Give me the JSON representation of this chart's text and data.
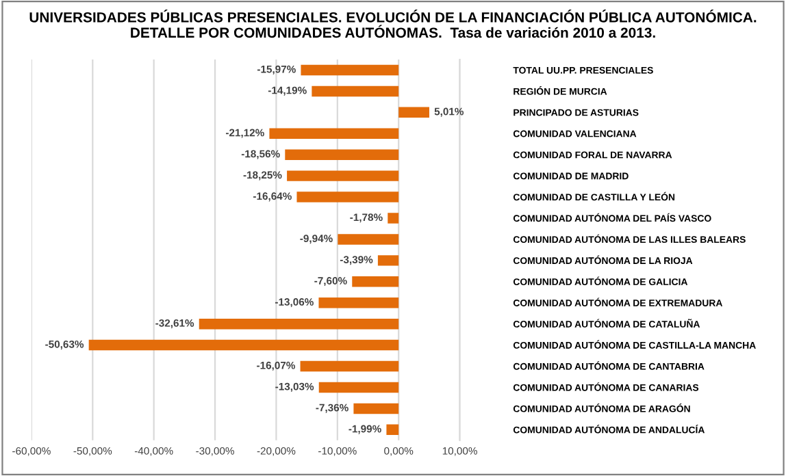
{
  "chart_data": {
    "type": "bar",
    "orientation": "horizontal",
    "title": "UNIVERSIDADES PÚBLICAS PRESENCIALES. EVOLUCIÓN DE LA FINANCIACIÓN PÚBLICA AUTONÓMICA. DETALLE POR COMUNIDADES AUTÓNOMAS.  Tasa de variación 2010 a 2013.",
    "categories": [
      "TOTAL UU.PP. PRESENCIALES",
      "REGIÓN DE MURCIA",
      "PRINCIPADO DE ASTURIAS",
      "COMUNIDAD VALENCIANA",
      "COMUNIDAD FORAL DE NAVARRA",
      "COMUNIDAD DE MADRID",
      "COMUNIDAD DE CASTILLA Y LEÓN",
      "COMUNIDAD AUTÓNOMA DEL PAÍS VASCO",
      "COMUNIDAD AUTÓNOMA DE LAS ILLES BALEARS",
      "COMUNIDAD AUTÓNOMA DE LA RIOJA",
      "COMUNIDAD AUTÓNOMA DE GALICIA",
      "COMUNIDAD AUTÓNOMA DE EXTREMADURA",
      "COMUNIDAD AUTÓNOMA DE CATALUÑA",
      "COMUNIDAD AUTÓNOMA DE CASTILLA-LA MANCHA",
      "COMUNIDAD AUTÓNOMA DE CANTABRIA",
      "COMUNIDAD AUTÓNOMA DE CANARIAS",
      "COMUNIDAD AUTÓNOMA DE ARAGÓN",
      "COMUNIDAD AUTÓNOMA DE ANDALUCÍA"
    ],
    "values": [
      -15.97,
      -14.19,
      5.01,
      -21.12,
      -18.56,
      -18.25,
      -16.64,
      -1.78,
      -9.94,
      -3.39,
      -7.6,
      -13.06,
      -32.61,
      -50.63,
      -16.07,
      -13.03,
      -7.36,
      -1.99
    ],
    "value_labels": [
      "-15,97%",
      "-14,19%",
      "5,01%",
      "-21,12%",
      "-18,56%",
      "-18,25%",
      "-16,64%",
      "-1,78%",
      "-9,94%",
      "-3,39%",
      "-7,60%",
      "-13,06%",
      "-32,61%",
      "-50,63%",
      "-16,07%",
      "-13,03%",
      "-7,36%",
      "-1,99%"
    ],
    "color": "#e36c0a",
    "xlim": [
      -60,
      10
    ],
    "xticks": [
      {
        "value": -60,
        "label": "-60,00%"
      },
      {
        "value": -50,
        "label": "-50,00%"
      },
      {
        "value": -40,
        "label": "-40,00%"
      },
      {
        "value": -30,
        "label": "-30,00%"
      },
      {
        "value": -20,
        "label": "-20,00%"
      },
      {
        "value": -10,
        "label": "-10,00%"
      },
      {
        "value": 0,
        "label": "0,00%"
      },
      {
        "value": 10,
        "label": "10,00%"
      }
    ],
    "grid": "x",
    "legend": false
  }
}
